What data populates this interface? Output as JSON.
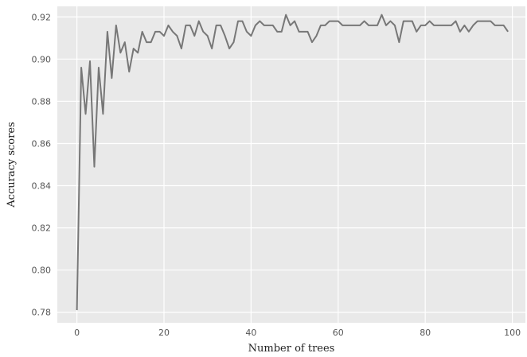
{
  "chart_data": {
    "type": "line",
    "title": "",
    "xlabel": "Number of trees",
    "ylabel": "Accuracy scores",
    "xlim": [
      -4.5,
      103
    ],
    "ylim": [
      0.775,
      0.925
    ],
    "xticks": [
      0,
      20,
      40,
      60,
      80,
      100
    ],
    "yticks": [
      0.78,
      0.8,
      0.82,
      0.84,
      0.86,
      0.88,
      0.9,
      0.92
    ],
    "xtick_labels": [
      "0",
      "20",
      "40",
      "60",
      "80",
      "100"
    ],
    "ytick_labels": [
      "0.78",
      "0.80",
      "0.82",
      "0.84",
      "0.86",
      "0.88",
      "0.90",
      "0.92"
    ],
    "grid": true,
    "colors": {
      "background": "#e9e9e9",
      "grid": "#ffffff",
      "line": "#777777"
    },
    "series": [
      {
        "x": [
          0,
          1,
          2,
          3,
          4,
          5,
          6,
          7,
          8,
          9,
          10,
          11,
          12,
          13,
          14,
          15,
          16,
          17,
          18,
          19,
          20,
          21,
          22,
          23,
          24,
          25,
          26,
          27,
          28,
          29,
          30,
          31,
          32,
          33,
          34,
          35,
          36,
          37,
          38,
          39,
          40,
          41,
          42,
          43,
          44,
          45,
          46,
          47,
          48,
          49,
          50,
          51,
          52,
          53,
          54,
          55,
          56,
          57,
          58,
          59,
          60,
          61,
          62,
          63,
          64,
          65,
          66,
          67,
          68,
          69,
          70,
          71,
          72,
          73,
          74,
          75,
          76,
          77,
          78,
          79,
          80,
          81,
          82,
          83,
          84,
          85,
          86,
          87,
          88,
          89,
          90,
          91,
          92,
          93,
          94,
          95,
          96,
          97,
          98,
          99
        ],
        "values": [
          0.781,
          0.896,
          0.874,
          0.899,
          0.849,
          0.896,
          0.874,
          0.913,
          0.891,
          0.916,
          0.903,
          0.908,
          0.894,
          0.905,
          0.903,
          0.913,
          0.908,
          0.908,
          0.913,
          0.913,
          0.911,
          0.916,
          0.913,
          0.911,
          0.905,
          0.916,
          0.916,
          0.911,
          0.918,
          0.913,
          0.911,
          0.905,
          0.916,
          0.916,
          0.911,
          0.905,
          0.908,
          0.918,
          0.918,
          0.913,
          0.911,
          0.916,
          0.918,
          0.916,
          0.916,
          0.916,
          0.913,
          0.913,
          0.921,
          0.916,
          0.918,
          0.913,
          0.913,
          0.913,
          0.908,
          0.911,
          0.916,
          0.916,
          0.918,
          0.918,
          0.918,
          0.916,
          0.916,
          0.916,
          0.916,
          0.916,
          0.918,
          0.916,
          0.916,
          0.916,
          0.921,
          0.916,
          0.918,
          0.916,
          0.908,
          0.918,
          0.918,
          0.918,
          0.913,
          0.916,
          0.916,
          0.918,
          0.916,
          0.916,
          0.916,
          0.916,
          0.916,
          0.918,
          0.913,
          0.916,
          0.913,
          0.916,
          0.918,
          0.918,
          0.918,
          0.918,
          0.916,
          0.916,
          0.916,
          0.913
        ]
      }
    ]
  }
}
